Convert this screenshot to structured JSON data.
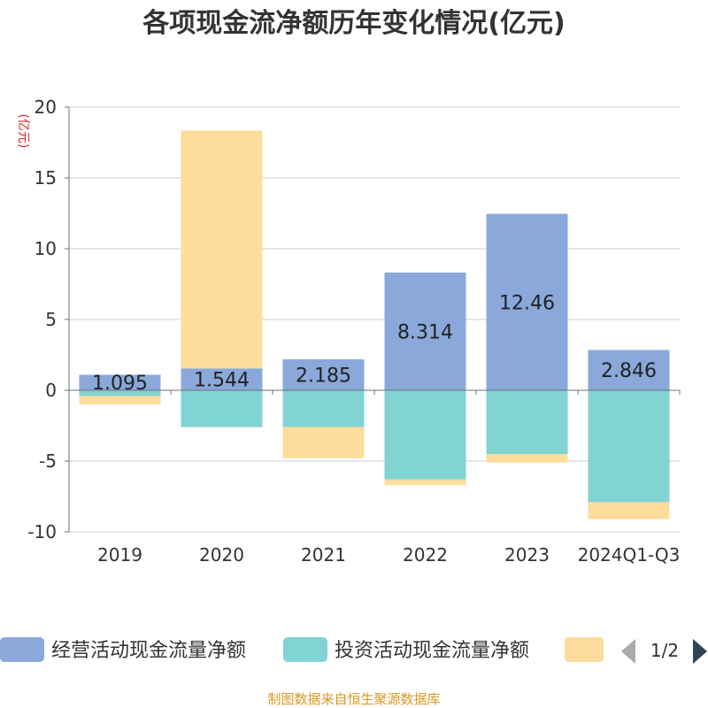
{
  "title": "各项现金流净额历年变化情况(亿元)",
  "unit_label": "(亿元)",
  "source_note": "制图数据来自恒生聚源数据库",
  "legend": {
    "items": [
      "经营活动现金流量净额",
      "投资活动现金流量净额",
      ""
    ],
    "page": "1/2"
  },
  "colors": {
    "operating": "#8aa9da",
    "investing": "#82d3d3",
    "third": "#fedc9d",
    "unit": "#e0262a",
    "source": "#d9981f"
  },
  "chart_data": {
    "type": "bar",
    "stacked": true,
    "categories": [
      "2019",
      "2020",
      "2021",
      "2022",
      "2023",
      "2024Q1-Q3"
    ],
    "series": [
      {
        "name": "经营活动现金流量净额",
        "values": [
          1.095,
          1.544,
          2.185,
          8.314,
          12.46,
          2.846
        ],
        "labels": [
          "1.095",
          "1.544",
          "2.185",
          "8.314",
          "12.46",
          "2.846"
        ]
      },
      {
        "name": "投资活动现金流量净额",
        "values": [
          -0.4,
          -2.6,
          -2.6,
          -6.3,
          -4.5,
          -7.9
        ]
      },
      {
        "name": "",
        "values": [
          -0.6,
          16.8,
          -2.2,
          -0.4,
          -0.6,
          -1.2
        ]
      }
    ],
    "ylim": [
      -10,
      20
    ],
    "yticks": [
      20,
      15,
      10,
      5,
      0,
      -5,
      -10
    ],
    "grid": true,
    "legend_position": "bottom"
  }
}
